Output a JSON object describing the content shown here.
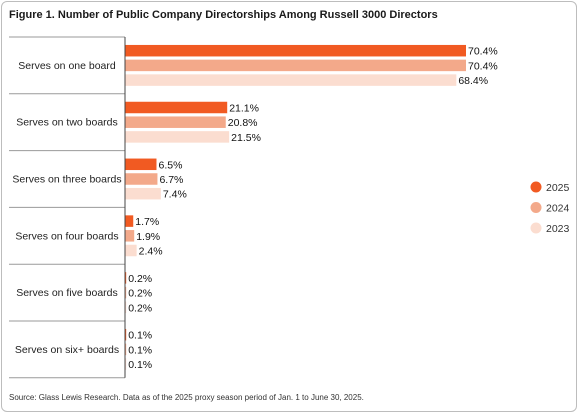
{
  "chart_data": {
    "type": "bar",
    "orientation": "horizontal",
    "title": "Figure 1. Number of Public Company Directorships Among Russell 3000 Directors",
    "categories": [
      "Serves on one board",
      "Serves on two boards",
      "Serves on three boards",
      "Serves on four boards",
      "Serves on five boards",
      "Serves on six+ boards"
    ],
    "series": [
      {
        "name": "2025",
        "color": "#f15a22",
        "values": [
          70.4,
          21.1,
          6.5,
          1.7,
          0.2,
          0.1
        ],
        "labels": [
          "70.4%",
          "21.1%",
          "6.5%",
          "1.7%",
          "0.2%",
          "0.1%"
        ]
      },
      {
        "name": "2024",
        "color": "#f3a98a",
        "values": [
          70.4,
          20.8,
          6.7,
          1.9,
          0.2,
          0.1
        ],
        "labels": [
          "70.4%",
          "20.8%",
          "6.7%",
          "1.9%",
          "0.2%",
          "0.1%"
        ]
      },
      {
        "name": "2023",
        "color": "#fbddd0",
        "values": [
          68.4,
          21.5,
          7.4,
          2.4,
          0.2,
          0.1
        ],
        "labels": [
          "68.4%",
          "21.5%",
          "7.4%",
          "2.4%",
          "0.2%",
          "0.1%"
        ]
      }
    ],
    "xlim": [
      0,
      70.4
    ],
    "grid": false,
    "legend": "right"
  },
  "source": "Source: Glass Lewis Research. Data as of the 2025 proxy season period of Jan. 1 to June 30, 2025."
}
